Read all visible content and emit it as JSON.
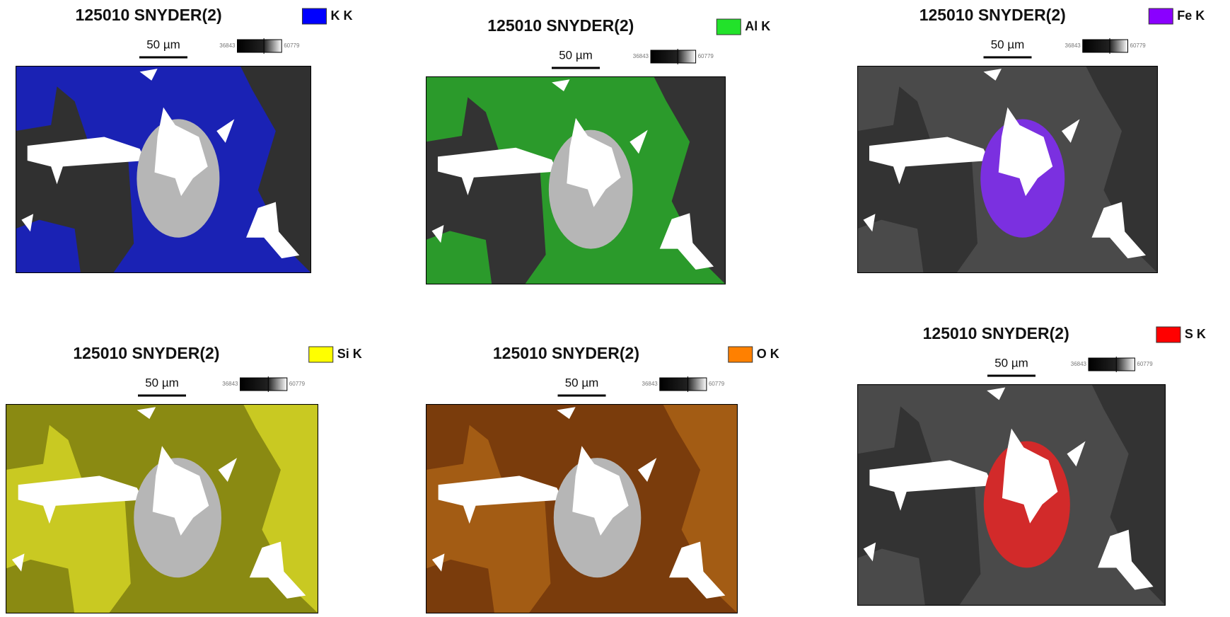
{
  "panels": [
    {
      "title": "125010 SNYDER(2)",
      "element": "K K",
      "color": "#0000ff",
      "scale_label": "50 µm",
      "range_min": 36843,
      "range_max": 60779
    },
    {
      "title": "125010 SNYDER(2)",
      "element": "Al K",
      "color": "#22e22a",
      "scale_label": "50 µm",
      "range_min": 36843,
      "range_max": 60779
    },
    {
      "title": "125010 SNYDER(2)",
      "element": "Fe K",
      "color": "#8a00ff",
      "scale_label": "50 µm",
      "range_min": 36843,
      "range_max": 60779
    },
    {
      "title": "125010 SNYDER(2)",
      "element": "Si K",
      "color": "#ffff00",
      "scale_label": "50 µm",
      "range_min": 36843,
      "range_max": 60779
    },
    {
      "title": "125010 SNYDER(2)",
      "element": "O K",
      "color": "#ff8000",
      "scale_label": "50 µm",
      "range_min": 36843,
      "range_max": 60779
    },
    {
      "title": "125010 SNYDER(2)",
      "element": "S K",
      "color": "#ff0000",
      "scale_label": "50 µm",
      "range_min": 36843,
      "range_max": 60779
    }
  ]
}
